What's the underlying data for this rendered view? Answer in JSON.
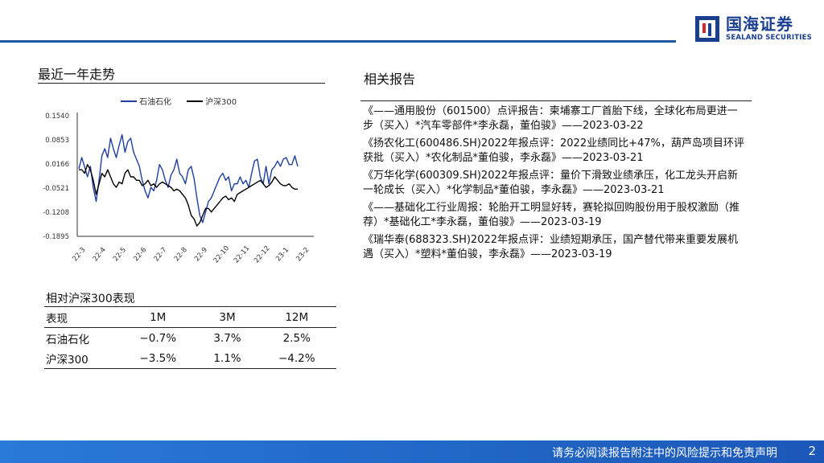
{
  "brand": {
    "name_cn": "国海证券",
    "name_en": "SEALAND SECURITIES"
  },
  "left": {
    "title": "最近一年走势"
  },
  "right": {
    "title": "相关报告"
  },
  "colors": {
    "accent": "#1f56a6",
    "series_primary": "#1f3f9e",
    "series_index": "#000000"
  },
  "chart_data": {
    "type": "line",
    "legend_position": "top",
    "grid": false,
    "y_ticks": [
      "0.1540",
      "0.0853",
      "0.0166",
      "-0.0521",
      "-0.1208",
      "-0.1895"
    ],
    "ylim": [
      -0.1895,
      0.154
    ],
    "x_ticks": [
      "22-3",
      "22-4",
      "22-5",
      "22-6",
      "22-7",
      "22-8",
      "22-9",
      "22-10",
      "22-11",
      "22-12",
      "23-1",
      "23-2"
    ],
    "series": [
      {
        "name": "石油石化",
        "values": [
          0.003,
          0.035,
          0.008,
          -0.02,
          0.01,
          -0.05,
          -0.09,
          -0.03,
          0.04,
          0.06,
          0.035,
          0.09,
          0.06,
          0.035,
          0.07,
          0.1,
          0.05,
          0.08,
          0.09,
          0.05,
          0.03,
          0.01,
          -0.03,
          -0.06,
          -0.08,
          -0.05,
          -0.06,
          -0.03,
          0.015,
          0.0,
          -0.03,
          -0.05,
          -0.015,
          0.0,
          0.03,
          -0.01,
          -0.02,
          -0.04,
          0.0,
          0.01,
          -0.025,
          -0.08,
          -0.13,
          -0.15,
          -0.12,
          -0.09,
          -0.08,
          -0.06,
          -0.04,
          -0.02,
          -0.01,
          -0.03,
          -0.02,
          -0.06,
          -0.04,
          -0.04,
          -0.02,
          -0.04,
          -0.03,
          -0.05,
          -0.01,
          0.025,
          0.03,
          -0.02,
          -0.04,
          0.01,
          -0.04,
          0.0,
          0.01,
          0.025,
          0.01,
          0.03,
          0.035,
          0.015,
          0.015,
          0.04,
          0.01
        ]
      },
      {
        "name": "沪深300",
        "values": [
          0.0,
          0.0,
          -0.01,
          0.015,
          0.0,
          -0.03,
          -0.07,
          -0.04,
          -0.01,
          -0.02,
          0.0,
          -0.02,
          -0.04,
          -0.05,
          -0.035,
          -0.04,
          -0.01,
          0.0,
          -0.02,
          -0.02,
          -0.03,
          -0.03,
          -0.045,
          -0.04,
          -0.03,
          -0.045,
          -0.04,
          -0.05,
          -0.04,
          -0.035,
          -0.04,
          -0.045,
          -0.05,
          -0.06,
          -0.055,
          -0.06,
          -0.07,
          -0.08,
          -0.1,
          -0.13,
          -0.14,
          -0.16,
          -0.15,
          -0.13,
          -0.11,
          -0.11,
          -0.12,
          -0.11,
          -0.1,
          -0.09,
          -0.08,
          -0.075,
          -0.085,
          -0.08,
          -0.09,
          -0.07,
          -0.065,
          -0.06,
          -0.055,
          -0.05,
          -0.045,
          -0.04,
          -0.035,
          -0.03,
          -0.04,
          -0.05,
          -0.045,
          -0.035,
          -0.02,
          -0.03,
          -0.04,
          -0.045,
          -0.045,
          -0.04,
          -0.05,
          -0.055,
          -0.055
        ]
      }
    ]
  },
  "performance": {
    "title": "相对沪深300表现",
    "headers": [
      "表现",
      "1M",
      "3M",
      "12M"
    ],
    "rows": [
      [
        "石油石化",
        "−0.7%",
        "3.7%",
        "2.5%"
      ],
      [
        "沪深300",
        "−3.5%",
        "1.1%",
        "−4.2%"
      ]
    ]
  },
  "reports": [
    "《——通用股份（601500）点评报告：柬埔寨工厂首胎下线，全球化布局更进一步（买入）*汽车零部件*李永磊，董伯骏》——2023-03-22",
    "《扬农化工(600486.SH)2022年报点评：2022业绩同比+47%，葫芦岛项目环评获批（买入）*农化制品*董伯骏，李永磊》——2023-03-21",
    "《万华化学(600309.SH)2022年报点评：量价下滑致业绩承压，化工龙头开启新一轮成长（买入）*化学制品*董伯骏，李永磊》——2023-03-21",
    "《——基础化工行业周报：轮胎开工明显好转，赛轮拟回购股份用于股权激励（推荐）*基础化工*李永磊，董伯骏》——2023-03-19",
    "《瑞华泰(688323.SH)2022年报点评：业绩短期承压，国产替代带来重要发展机遇（买入）*塑料*董伯骏，李永磊》——2023-03-19"
  ],
  "footer": {
    "disclaimer": "请务必阅读报告附注中的风险提示和免责声明",
    "page": "2"
  }
}
